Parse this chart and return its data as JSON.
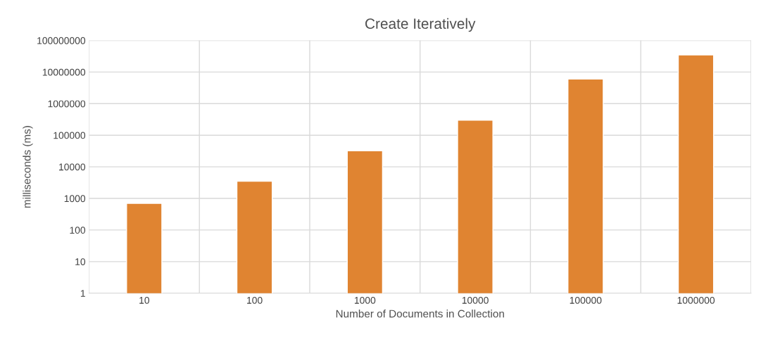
{
  "chart_data": {
    "type": "bar",
    "title": "Create Iteratively",
    "xlabel": "Number of Documents in Collection",
    "ylabel": "milliseconds (ms)",
    "categories": [
      "10",
      "100",
      "1000",
      "10000",
      "100000",
      "1000000"
    ],
    "values": [
      700,
      3500,
      32000,
      300000,
      6000000,
      35000000
    ],
    "color": "#e08431",
    "log": true,
    "ylim": [
      1,
      100000000
    ],
    "yticks": [
      1,
      10,
      100,
      1000,
      10000,
      100000,
      1000000,
      10000000,
      100000000
    ],
    "grid": true
  }
}
